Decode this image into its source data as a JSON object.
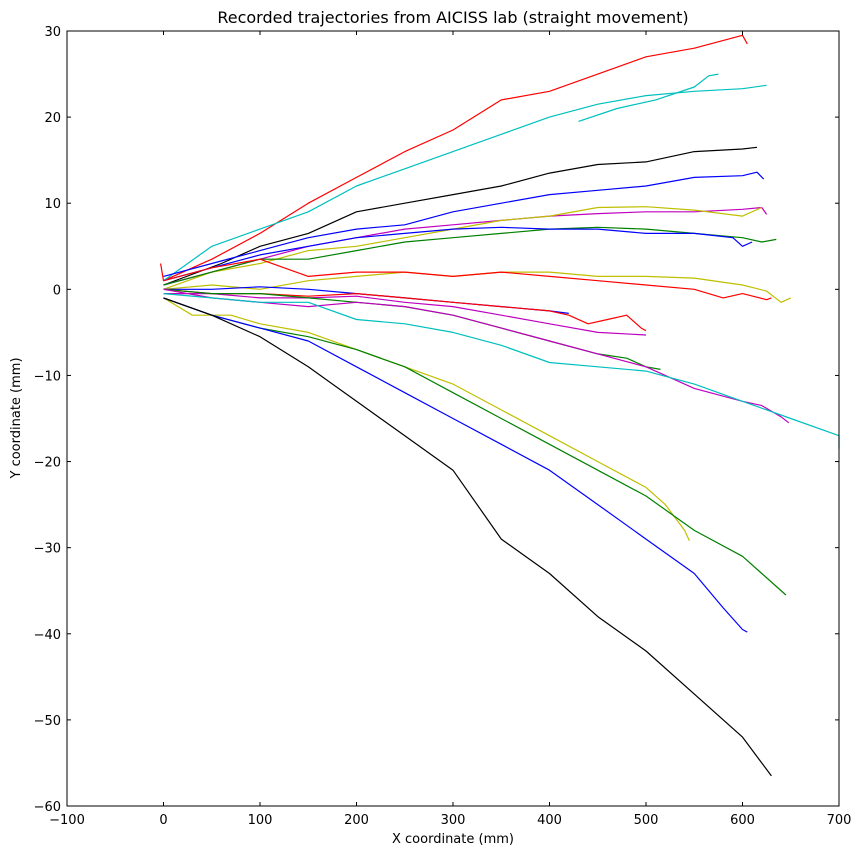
{
  "chart_data": {
    "type": "line",
    "title": "Recorded trajectories from AICISS lab (straight movement)",
    "xlabel": "X coordinate (mm)",
    "ylabel": "Y coordinate (mm)",
    "xlim": [
      -100,
      700
    ],
    "ylim": [
      -60,
      30
    ],
    "xticks": [
      -100,
      0,
      100,
      200,
      300,
      400,
      500,
      600,
      700
    ],
    "yticks": [
      -60,
      -50,
      -40,
      -30,
      -20,
      -10,
      0,
      10,
      20,
      30
    ],
    "xtick_labels": [
      "−100",
      "0",
      "100",
      "200",
      "300",
      "400",
      "500",
      "600",
      "700"
    ],
    "ytick_labels": [
      "−60",
      "−50",
      "−40",
      "−30",
      "−20",
      "−10",
      "0",
      "10",
      "20",
      "30"
    ],
    "grid": false,
    "series": [
      {
        "color": "#ff0000",
        "points": [
          [
            -3,
            3
          ],
          [
            0,
            1
          ],
          [
            50,
            3.5
          ],
          [
            100,
            6.5
          ],
          [
            150,
            10
          ],
          [
            200,
            13
          ],
          [
            250,
            16
          ],
          [
            300,
            18.5
          ],
          [
            350,
            22
          ],
          [
            400,
            23
          ],
          [
            450,
            25
          ],
          [
            500,
            27
          ],
          [
            550,
            28
          ],
          [
            600,
            29.5
          ],
          [
            605,
            28.5
          ]
        ]
      },
      {
        "color": "#00bfbf",
        "points": [
          [
            0,
            1
          ],
          [
            50,
            5
          ],
          [
            100,
            7
          ],
          [
            150,
            9
          ],
          [
            200,
            12
          ],
          [
            250,
            14
          ],
          [
            300,
            16
          ],
          [
            350,
            18
          ],
          [
            400,
            20
          ],
          [
            450,
            21.5
          ],
          [
            500,
            22.5
          ],
          [
            550,
            23
          ],
          [
            600,
            23.3
          ],
          [
            625,
            23.7
          ]
        ]
      },
      {
        "color": "#00bfbf",
        "points": [
          [
            430,
            19.5
          ],
          [
            470,
            21
          ],
          [
            510,
            22
          ],
          [
            550,
            23.5
          ],
          [
            565,
            24.8
          ],
          [
            575,
            25
          ]
        ]
      },
      {
        "color": "#000000",
        "points": [
          [
            0,
            0.5
          ],
          [
            60,
            3
          ],
          [
            100,
            5
          ],
          [
            150,
            6.5
          ],
          [
            200,
            9
          ],
          [
            250,
            10
          ],
          [
            300,
            11
          ],
          [
            350,
            12
          ],
          [
            400,
            13.5
          ],
          [
            450,
            14.5
          ],
          [
            500,
            14.8
          ],
          [
            550,
            16
          ],
          [
            600,
            16.3
          ],
          [
            615,
            16.5
          ]
        ]
      },
      {
        "color": "#0000ff",
        "points": [
          [
            0,
            1.5
          ],
          [
            50,
            3
          ],
          [
            100,
            4.5
          ],
          [
            150,
            6
          ],
          [
            200,
            7
          ],
          [
            250,
            7.5
          ],
          [
            300,
            9
          ],
          [
            350,
            10
          ],
          [
            400,
            11
          ],
          [
            450,
            11.5
          ],
          [
            500,
            12
          ],
          [
            550,
            13
          ],
          [
            600,
            13.2
          ],
          [
            615,
            13.6
          ],
          [
            622,
            12.8
          ]
        ]
      },
      {
        "color": "#bf00bf",
        "points": [
          [
            0,
            0.5
          ],
          [
            50,
            2
          ],
          [
            100,
            3.5
          ],
          [
            150,
            5
          ],
          [
            200,
            6
          ],
          [
            250,
            7
          ],
          [
            300,
            7.5
          ],
          [
            350,
            8
          ],
          [
            400,
            8.5
          ],
          [
            450,
            8.8
          ],
          [
            500,
            9
          ],
          [
            550,
            9
          ],
          [
            600,
            9.3
          ],
          [
            620,
            9.5
          ],
          [
            625,
            8.7
          ]
        ]
      },
      {
        "color": "#bfbf00",
        "points": [
          [
            0,
            0
          ],
          [
            50,
            2
          ],
          [
            100,
            3
          ],
          [
            150,
            4.5
          ],
          [
            200,
            5
          ],
          [
            250,
            6
          ],
          [
            300,
            7
          ],
          [
            350,
            8
          ],
          [
            400,
            8.5
          ],
          [
            450,
            9.5
          ],
          [
            500,
            9.6
          ],
          [
            550,
            9.2
          ],
          [
            600,
            8.5
          ],
          [
            620,
            9.5
          ]
        ]
      },
      {
        "color": "#008000",
        "points": [
          [
            0,
            0.5
          ],
          [
            50,
            2
          ],
          [
            100,
            3.5
          ],
          [
            150,
            3.5
          ],
          [
            200,
            4.5
          ],
          [
            250,
            5.5
          ],
          [
            300,
            6
          ],
          [
            350,
            6.5
          ],
          [
            400,
            7
          ],
          [
            450,
            7.2
          ],
          [
            500,
            7
          ],
          [
            550,
            6.5
          ],
          [
            600,
            6
          ],
          [
            620,
            5.5
          ],
          [
            635,
            5.8
          ]
        ]
      },
      {
        "color": "#0000ff",
        "points": [
          [
            0,
            1
          ],
          [
            50,
            2.5
          ],
          [
            100,
            4
          ],
          [
            150,
            5
          ],
          [
            200,
            6
          ],
          [
            250,
            6.5
          ],
          [
            300,
            7
          ],
          [
            350,
            7.2
          ],
          [
            400,
            7
          ],
          [
            450,
            7
          ],
          [
            500,
            6.5
          ],
          [
            550,
            6.5
          ],
          [
            590,
            6
          ],
          [
            600,
            5
          ],
          [
            610,
            5.5
          ]
        ]
      },
      {
        "color": "#bfbf00",
        "points": [
          [
            0,
            0
          ],
          [
            50,
            0.5
          ],
          [
            100,
            0
          ],
          [
            150,
            1
          ],
          [
            200,
            1.5
          ],
          [
            250,
            2
          ],
          [
            300,
            1.5
          ],
          [
            350,
            2
          ],
          [
            400,
            2
          ],
          [
            450,
            1.5
          ],
          [
            500,
            1.5
          ],
          [
            550,
            1.3
          ],
          [
            600,
            0.5
          ],
          [
            625,
            -0.2
          ],
          [
            640,
            -1.5
          ],
          [
            650,
            -1
          ]
        ]
      },
      {
        "color": "#ff0000",
        "points": [
          [
            0,
            1
          ],
          [
            50,
            2.5
          ],
          [
            100,
            3.5
          ],
          [
            150,
            1.5
          ],
          [
            200,
            2
          ],
          [
            250,
            2
          ],
          [
            300,
            1.5
          ],
          [
            350,
            2
          ],
          [
            400,
            1.5
          ],
          [
            450,
            1
          ],
          [
            500,
            0.5
          ],
          [
            550,
            0
          ],
          [
            580,
            -1
          ],
          [
            600,
            -0.5
          ],
          [
            625,
            -1.2
          ],
          [
            630,
            -1
          ]
        ]
      },
      {
        "color": "#0000ff",
        "points": [
          [
            0,
            0
          ],
          [
            50,
            0
          ],
          [
            100,
            0.3
          ],
          [
            150,
            0
          ],
          [
            200,
            -0.5
          ],
          [
            250,
            -1
          ],
          [
            300,
            -1.5
          ],
          [
            350,
            -2
          ],
          [
            400,
            -2.5
          ],
          [
            420,
            -2.8
          ]
        ]
      },
      {
        "color": "#ff0000",
        "points": [
          [
            0,
            0
          ],
          [
            50,
            -0.5
          ],
          [
            100,
            -0.5
          ],
          [
            150,
            -0.8
          ],
          [
            200,
            -0.5
          ],
          [
            250,
            -1
          ],
          [
            300,
            -1.5
          ],
          [
            350,
            -2
          ],
          [
            400,
            -2.5
          ],
          [
            420,
            -3
          ],
          [
            440,
            -4
          ],
          [
            460,
            -3.5
          ],
          [
            480,
            -3
          ],
          [
            495,
            -4.5
          ],
          [
            500,
            -4.8
          ]
        ]
      },
      {
        "color": "#bf00bf",
        "points": [
          [
            0,
            -0.5
          ],
          [
            50,
            -0.5
          ],
          [
            100,
            -1
          ],
          [
            150,
            -1
          ],
          [
            200,
            -0.8
          ],
          [
            250,
            -1.5
          ],
          [
            300,
            -2
          ],
          [
            350,
            -3
          ],
          [
            400,
            -4
          ],
          [
            450,
            -5
          ],
          [
            500,
            -5.3
          ]
        ]
      },
      {
        "color": "#008000",
        "points": [
          [
            0,
            0
          ],
          [
            50,
            -0.5
          ],
          [
            100,
            -0.5
          ],
          [
            150,
            -1
          ],
          [
            200,
            -1.5
          ],
          [
            250,
            -2
          ],
          [
            300,
            -3
          ],
          [
            350,
            -4.5
          ],
          [
            400,
            -6
          ],
          [
            450,
            -7.5
          ],
          [
            480,
            -8
          ],
          [
            500,
            -9
          ],
          [
            515,
            -9.3
          ]
        ]
      },
      {
        "color": "#bf00bf",
        "points": [
          [
            0,
            0
          ],
          [
            50,
            -1
          ],
          [
            100,
            -1.5
          ],
          [
            150,
            -2
          ],
          [
            200,
            -1.5
          ],
          [
            250,
            -2
          ],
          [
            300,
            -3
          ],
          [
            350,
            -4.5
          ],
          [
            400,
            -6
          ],
          [
            450,
            -7.5
          ],
          [
            500,
            -9
          ],
          [
            550,
            -11.5
          ],
          [
            600,
            -13
          ],
          [
            620,
            -13.5
          ],
          [
            640,
            -14.8
          ],
          [
            648,
            -15.5
          ]
        ]
      },
      {
        "color": "#00bfbf",
        "points": [
          [
            0,
            -0.5
          ],
          [
            50,
            -1
          ],
          [
            100,
            -1.5
          ],
          [
            150,
            -1.5
          ],
          [
            200,
            -3.5
          ],
          [
            250,
            -4
          ],
          [
            300,
            -5
          ],
          [
            350,
            -6.5
          ],
          [
            400,
            -8.5
          ],
          [
            450,
            -9
          ],
          [
            500,
            -9.5
          ],
          [
            550,
            -11
          ],
          [
            600,
            -13
          ],
          [
            650,
            -15
          ],
          [
            700,
            -17
          ],
          [
            750,
            -18.5
          ]
        ]
      },
      {
        "color": "#bfbf00",
        "points": [
          [
            0,
            -1
          ],
          [
            30,
            -3
          ],
          [
            70,
            -3
          ],
          [
            100,
            -4
          ],
          [
            150,
            -5
          ],
          [
            200,
            -7
          ],
          [
            250,
            -9
          ],
          [
            300,
            -11
          ],
          [
            350,
            -14
          ],
          [
            400,
            -17
          ],
          [
            450,
            -20
          ],
          [
            500,
            -23
          ],
          [
            520,
            -25
          ],
          [
            540,
            -28
          ],
          [
            545,
            -29.2
          ]
        ]
      },
      {
        "color": "#008000",
        "points": [
          [
            0,
            -1
          ],
          [
            50,
            -3
          ],
          [
            100,
            -4.5
          ],
          [
            150,
            -5.5
          ],
          [
            200,
            -7
          ],
          [
            250,
            -9
          ],
          [
            300,
            -12
          ],
          [
            350,
            -15
          ],
          [
            400,
            -18
          ],
          [
            450,
            -21
          ],
          [
            500,
            -24
          ],
          [
            550,
            -28
          ],
          [
            600,
            -31
          ],
          [
            620,
            -33
          ],
          [
            645,
            -35.5
          ]
        ]
      },
      {
        "color": "#0000ff",
        "points": [
          [
            0,
            -1
          ],
          [
            50,
            -3
          ],
          [
            100,
            -4.5
          ],
          [
            150,
            -6
          ],
          [
            200,
            -9
          ],
          [
            250,
            -12
          ],
          [
            300,
            -15
          ],
          [
            350,
            -18
          ],
          [
            400,
            -21
          ],
          [
            450,
            -25
          ],
          [
            500,
            -29
          ],
          [
            550,
            -33
          ],
          [
            580,
            -37
          ],
          [
            600,
            -39.5
          ],
          [
            605,
            -39.8
          ]
        ]
      },
      {
        "color": "#000000",
        "points": [
          [
            0,
            -1
          ],
          [
            50,
            -3
          ],
          [
            100,
            -5.5
          ],
          [
            150,
            -9
          ],
          [
            200,
            -13
          ],
          [
            250,
            -17
          ],
          [
            300,
            -21
          ],
          [
            350,
            -29
          ],
          [
            400,
            -33
          ],
          [
            450,
            -38
          ],
          [
            500,
            -42
          ],
          [
            550,
            -47
          ],
          [
            600,
            -52
          ],
          [
            630,
            -56.5
          ]
        ]
      }
    ]
  }
}
